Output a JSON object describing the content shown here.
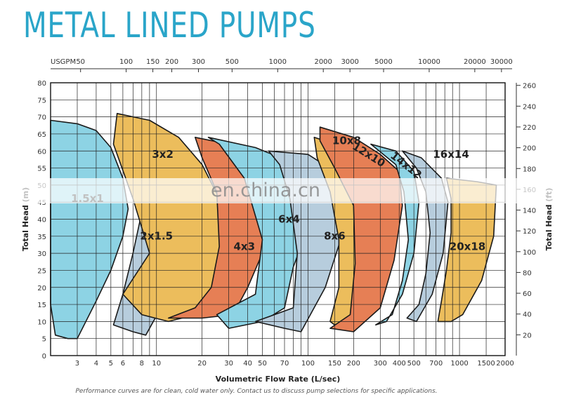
{
  "page": {
    "title": "METAL LINED PUMPS",
    "footnote": "Performance curves are for clean, cold water only. Contact us to discuss pump selections for specific applications.",
    "watermark": "en.china.cn"
  },
  "colors": {
    "title": "#2aa5c9",
    "blue": "#8dd3e4",
    "grey_blue": "#b7cddd",
    "yellow": "#ecbd5c",
    "orange": "#e67f55",
    "grid": "#222222"
  },
  "chart_data": {
    "type": "area",
    "title": "METAL LINED PUMPS",
    "xlabel": "Volumetric Flow Rate (L/sec)",
    "ylabel_left": "Total Head (m)",
    "ylabel_right": "Total Head (ft)",
    "xscale": "log",
    "xlim": [
      2,
      2000
    ],
    "ylim_m": [
      0,
      80
    ],
    "ylim_ft": [
      0,
      262.5
    ],
    "x_ticks": [
      "3",
      "4",
      "5",
      "6",
      "8",
      "10",
      "20",
      "30",
      "40",
      "50",
      "70",
      "100",
      "150",
      "200",
      "300",
      "400",
      "500",
      "700",
      "1000",
      "1500",
      "2000"
    ],
    "y_ticks_left": [
      "0",
      "5",
      "10",
      "15",
      "20",
      "25",
      "30",
      "35",
      "40",
      "45",
      "50",
      "55",
      "60",
      "65",
      "70",
      "75",
      "80"
    ],
    "y_ticks_right": [
      "20",
      "40",
      "60",
      "80",
      "100",
      "120",
      "140",
      "160",
      "180",
      "200",
      "220",
      "240",
      "260"
    ],
    "top_axis_label": "USGPM",
    "top_ticks": [
      "50",
      "100",
      "150",
      "200",
      "300",
      "500",
      "1000",
      "2000",
      "3000",
      "5000",
      "10000",
      "20000",
      "30000"
    ],
    "series": [
      {
        "name": "1.5x1",
        "color": "blue",
        "label": "1.5x1",
        "points": [
          [
            2,
            69
          ],
          [
            3,
            68
          ],
          [
            4,
            66
          ],
          [
            5,
            61
          ],
          [
            6,
            52
          ],
          [
            6.5,
            43
          ],
          [
            6,
            35
          ],
          [
            5,
            25
          ],
          [
            4,
            16
          ],
          [
            3,
            5
          ],
          [
            2.6,
            5
          ],
          [
            2.15,
            6
          ],
          [
            2,
            15
          ]
        ]
      },
      {
        "name": "2x1.5",
        "color": "grey_blue",
        "label": "2x1.5",
        "points": [
          [
            7,
            52
          ],
          [
            10,
            50
          ],
          [
            14,
            46
          ],
          [
            17,
            40
          ],
          [
            15,
            30
          ],
          [
            12,
            18
          ],
          [
            8.5,
            6
          ],
          [
            7,
            7
          ],
          [
            5.2,
            9
          ],
          [
            6,
            18
          ],
          [
            7,
            30
          ],
          [
            8,
            42
          ]
        ]
      },
      {
        "name": "3x2",
        "color": "yellow",
        "label": "3x2",
        "points": [
          [
            5.5,
            71
          ],
          [
            9,
            69
          ],
          [
            14,
            64
          ],
          [
            20,
            56
          ],
          [
            26,
            46
          ],
          [
            30,
            36
          ],
          [
            26,
            22
          ],
          [
            18,
            12
          ],
          [
            12,
            10
          ],
          [
            8,
            12
          ],
          [
            6,
            18
          ],
          [
            9,
            30
          ],
          [
            7,
            46
          ],
          [
            5.2,
            62
          ]
        ]
      },
      {
        "name": "4x3",
        "color": "orange",
        "label": "4x3",
        "points": [
          [
            18,
            64
          ],
          [
            30,
            62
          ],
          [
            42,
            57
          ],
          [
            55,
            46
          ],
          [
            50,
            30
          ],
          [
            40,
            20
          ],
          [
            32,
            12
          ],
          [
            20,
            11
          ],
          [
            12,
            11
          ],
          [
            18,
            14
          ],
          [
            23,
            20
          ],
          [
            26,
            32
          ],
          [
            25,
            48
          ],
          [
            20,
            58
          ]
        ]
      },
      {
        "name": "6x4",
        "color": "blue",
        "label": "6x4",
        "points": [
          [
            22,
            64
          ],
          [
            45,
            61
          ],
          [
            75,
            57
          ],
          [
            100,
            49
          ],
          [
            103,
            39
          ],
          [
            80,
            26
          ],
          [
            70,
            14
          ],
          [
            50,
            10
          ],
          [
            30,
            8
          ],
          [
            25,
            12
          ],
          [
            45,
            18
          ],
          [
            50,
            34
          ],
          [
            38,
            52
          ],
          [
            26,
            62
          ]
        ]
      },
      {
        "name": "8x6",
        "color": "grey_blue",
        "label": "8x6",
        "points": [
          [
            55,
            60
          ],
          [
            100,
            59
          ],
          [
            150,
            54
          ],
          [
            180,
            47
          ],
          [
            170,
            36
          ],
          [
            130,
            20
          ],
          [
            90,
            7
          ],
          [
            70,
            8
          ],
          [
            45,
            10
          ],
          [
            80,
            14
          ],
          [
            85,
            30
          ],
          [
            76,
            46
          ],
          [
            65,
            56
          ]
        ]
      },
      {
        "name": "10x8",
        "color": "yellow",
        "label": "10x8",
        "points": [
          [
            110,
            64
          ],
          [
            150,
            62
          ],
          [
            200,
            58
          ],
          [
            250,
            50
          ],
          [
            260,
            39
          ],
          [
            230,
            23
          ],
          [
            190,
            10
          ],
          [
            150,
            9
          ],
          [
            140,
            10
          ],
          [
            160,
            20
          ],
          [
            160,
            34
          ],
          [
            140,
            48
          ],
          [
            115,
            58
          ]
        ]
      },
      {
        "name": "12x10",
        "color": "orange",
        "label": "12x10",
        "points": [
          [
            120,
            67
          ],
          [
            200,
            64
          ],
          [
            300,
            59
          ],
          [
            400,
            54
          ],
          [
            420,
            44
          ],
          [
            370,
            28
          ],
          [
            300,
            14
          ],
          [
            200,
            7
          ],
          [
            140,
            8
          ],
          [
            190,
            12
          ],
          [
            205,
            27
          ],
          [
            200,
            44
          ],
          [
            150,
            55
          ],
          [
            120,
            63
          ]
        ]
      },
      {
        "name": "14x12",
        "color": "blue",
        "label": "14x12",
        "points": [
          [
            260,
            62
          ],
          [
            380,
            60
          ],
          [
            500,
            54
          ],
          [
            540,
            45
          ],
          [
            500,
            30
          ],
          [
            420,
            18
          ],
          [
            330,
            10
          ],
          [
            280,
            9
          ],
          [
            360,
            12
          ],
          [
            420,
            22
          ],
          [
            460,
            34
          ],
          [
            430,
            48
          ],
          [
            380,
            56
          ]
        ]
      },
      {
        "name": "16x14",
        "color": "grey_blue",
        "label": "16x14",
        "points": [
          [
            420,
            60
          ],
          [
            560,
            58
          ],
          [
            760,
            52
          ],
          [
            840,
            45
          ],
          [
            780,
            30
          ],
          [
            660,
            18
          ],
          [
            520,
            10
          ],
          [
            450,
            11
          ],
          [
            540,
            15
          ],
          [
            600,
            24
          ],
          [
            640,
            36
          ],
          [
            600,
            48
          ],
          [
            520,
            55
          ]
        ]
      },
      {
        "name": "20x18",
        "color": "yellow",
        "label": "20x18",
        "points": [
          [
            820,
            52
          ],
          [
            1300,
            51
          ],
          [
            1750,
            50
          ],
          [
            1680,
            35
          ],
          [
            1400,
            22
          ],
          [
            1050,
            12
          ],
          [
            880,
            10
          ],
          [
            720,
            10
          ],
          [
            760,
            16
          ],
          [
            820,
            25
          ],
          [
            880,
            36
          ],
          [
            880,
            46
          ]
        ]
      }
    ]
  }
}
